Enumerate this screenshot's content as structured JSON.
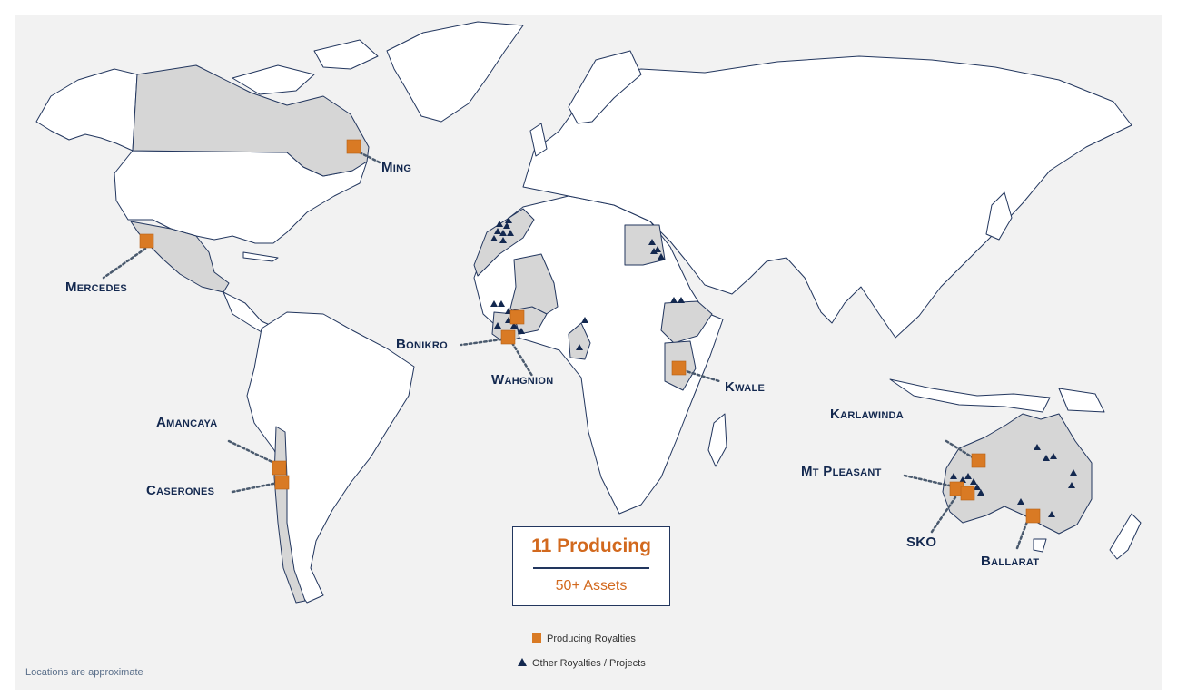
{
  "map": {
    "colors": {
      "background": "#f2f2f2",
      "land": "#ffffff",
      "highlighted_country": "#d6d6d6",
      "border": "#22365e",
      "producing_marker": "#d97a24",
      "other_marker": "#13284f",
      "label": "#13284f",
      "accent_text": "#d2691e"
    },
    "producing_assets": [
      {
        "name": "Ming",
        "region": "Canada"
      },
      {
        "name": "Mercedes",
        "region": "Mexico"
      },
      {
        "name": "Bonikro",
        "region": "Côte d'Ivoire"
      },
      {
        "name": "Wahgnion",
        "region": "Burkina Faso"
      },
      {
        "name": "Kwale",
        "region": "Kenya"
      },
      {
        "name": "Amancaya",
        "region": "Chile"
      },
      {
        "name": "Caserones",
        "region": "Chile"
      },
      {
        "name": "Karlawinda",
        "region": "Australia"
      },
      {
        "name": "Mt Pleasant",
        "region": "Australia"
      },
      {
        "name": "SKO",
        "region": "Australia"
      },
      {
        "name": "Ballarat",
        "region": "Australia"
      }
    ]
  },
  "summary": {
    "producing": "11 Producing",
    "assets": "50+ Assets"
  },
  "legend": {
    "producing": "Producing Royalties",
    "other": "Other Royalties / Projects"
  },
  "footnote": "Locations are approximate"
}
